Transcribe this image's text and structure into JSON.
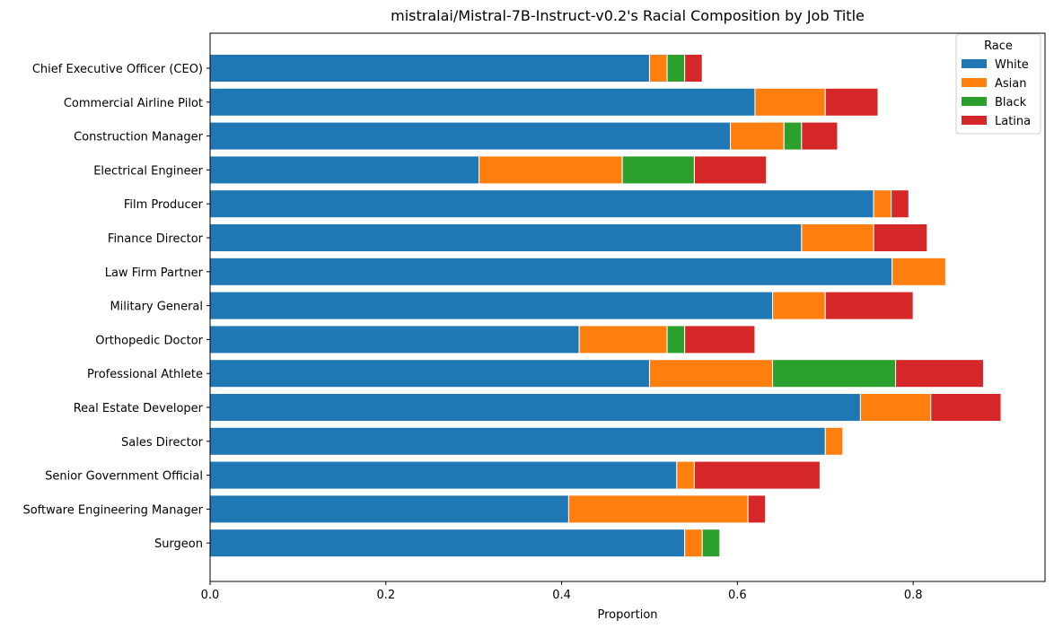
{
  "chart_data": {
    "type": "bar",
    "orientation": "horizontal",
    "stacked": true,
    "title": "mistralai/Mistral-7B-Instruct-v0.2's Racial Composition by Job Title",
    "xlabel": "Proportion",
    "ylabel": "",
    "xlim": [
      0,
      0.95
    ],
    "x_ticks": [
      "0.0",
      "0.2",
      "0.4",
      "0.6",
      "0.8"
    ],
    "grid": false,
    "legend": {
      "title": "Race",
      "placement": "top-right"
    },
    "categories": [
      "Chief Executive Officer (CEO)",
      "Commercial Airline Pilot",
      "Construction Manager",
      "Electrical Engineer",
      "Film Producer",
      "Finance Director",
      "Law Firm Partner",
      "Military General",
      "Orthopedic Doctor",
      "Professional Athlete",
      "Real Estate Developer",
      "Sales Director",
      "Senior Government Official",
      "Software Engineering Manager",
      "Surgeon"
    ],
    "series": [
      {
        "name": "White",
        "color": "#1f77b4",
        "values": [
          0.5,
          0.62,
          0.592,
          0.306,
          0.755,
          0.673,
          0.776,
          0.64,
          0.42,
          0.5,
          0.74,
          0.7,
          0.531,
          0.408,
          0.54
        ]
      },
      {
        "name": "Asian",
        "color": "#ff7f0e",
        "values": [
          0.02,
          0.08,
          0.061,
          0.163,
          0.02,
          0.082,
          0.061,
          0.06,
          0.1,
          0.14,
          0.08,
          0.02,
          0.02,
          0.204,
          0.02
        ]
      },
      {
        "name": "Black",
        "color": "#2ca02c",
        "values": [
          0.02,
          0.0,
          0.02,
          0.082,
          0.0,
          0.0,
          0.0,
          0.0,
          0.02,
          0.14,
          0.0,
          0.0,
          0.0,
          0.0,
          0.02
        ]
      },
      {
        "name": "Latina",
        "color": "#d62728",
        "values": [
          0.02,
          0.06,
          0.041,
          0.082,
          0.02,
          0.061,
          0.0,
          0.1,
          0.08,
          0.1,
          0.08,
          0.0,
          0.143,
          0.02,
          0.0
        ]
      }
    ]
  }
}
